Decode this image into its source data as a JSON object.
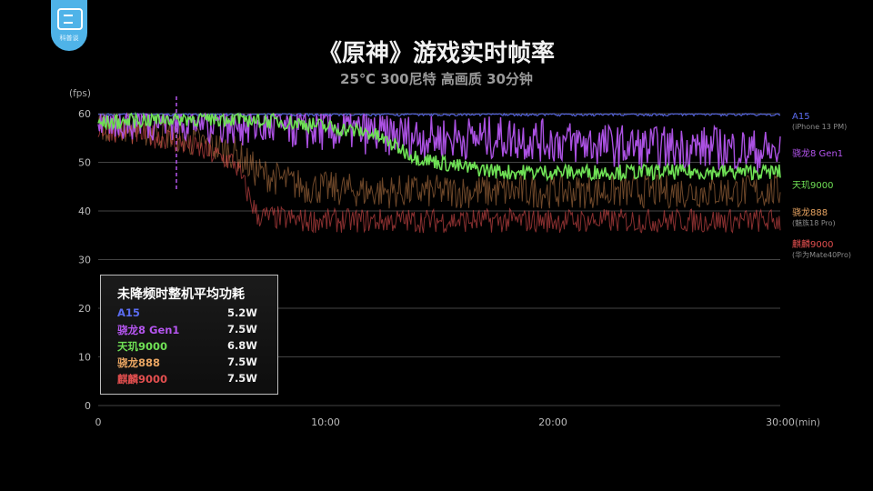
{
  "logo": {
    "text": "科普谈"
  },
  "chart_data": {
    "type": "line",
    "title": "《原神》游戏实时帧率",
    "subtitle": "25℃ 300尼特 高画质 30分钟",
    "ylabel": "(fps)",
    "xlabel": "(min)",
    "ylim": [
      0,
      60
    ],
    "xlim": [
      0,
      30
    ],
    "yticks": [
      "0",
      "10",
      "20",
      "30",
      "40",
      "50",
      "60"
    ],
    "xticks": [
      {
        "v": 0,
        "label": "0"
      },
      {
        "v": 10,
        "label": "10:00"
      },
      {
        "v": 20,
        "label": "20:00"
      },
      {
        "v": 30,
        "label": "30:00"
      }
    ],
    "series": [
      {
        "name": "A15",
        "note": "(iPhone 13 PM)",
        "color": "#5b6cf0",
        "x": [
          0,
          5,
          10,
          15,
          20,
          25,
          30
        ],
        "values": [
          60,
          60,
          60,
          60,
          60,
          60,
          60
        ]
      },
      {
        "name": "骁龙8 Gen1",
        "color": "#b455ee",
        "x": [
          0,
          3,
          6,
          9,
          12,
          15,
          18,
          21,
          24,
          27,
          30
        ],
        "values": [
          59,
          59,
          58,
          57,
          56,
          55,
          55,
          54,
          53,
          53,
          52
        ]
      },
      {
        "name": "天玑9000",
        "color": "#6fe055",
        "x": [
          0,
          3,
          6,
          9,
          12,
          14,
          16,
          18,
          21,
          24,
          27,
          30
        ],
        "values": [
          58,
          59,
          59,
          58,
          56,
          51,
          49,
          48,
          48,
          48,
          48,
          48
        ]
      },
      {
        "name": "骁龙888",
        "note": "(魅族18 Pro)",
        "color": "#c9814a",
        "x": [
          0,
          3,
          6,
          7,
          9,
          12,
          15,
          18,
          21,
          24,
          27,
          30
        ],
        "values": [
          58,
          56,
          52,
          48,
          45,
          44,
          44,
          44,
          44,
          44,
          44,
          44
        ]
      },
      {
        "name": "麒麟9000",
        "note": "(华为Mate40Pro)",
        "color": "#e34f4f",
        "x": [
          0,
          3,
          6,
          7,
          9,
          12,
          15,
          18,
          21,
          24,
          27,
          30
        ],
        "values": [
          57,
          55,
          50,
          39,
          38,
          38,
          38,
          38,
          38,
          38,
          38,
          38
        ]
      }
    ]
  },
  "power_table": {
    "title": "未降频时整机平均功耗",
    "rows": [
      {
        "name": "A15",
        "value": "5.2W",
        "color": "#5b6cf0"
      },
      {
        "name": "骁龙8 Gen1",
        "value": "7.5W",
        "color": "#b455ee"
      },
      {
        "name": "天玑9000",
        "value": "6.8W",
        "color": "#6fe055"
      },
      {
        "name": "骁龙888",
        "value": "7.5W",
        "color": "#e9a562"
      },
      {
        "name": "麒麟9000",
        "value": "7.5W",
        "color": "#e34f4f"
      }
    ]
  }
}
